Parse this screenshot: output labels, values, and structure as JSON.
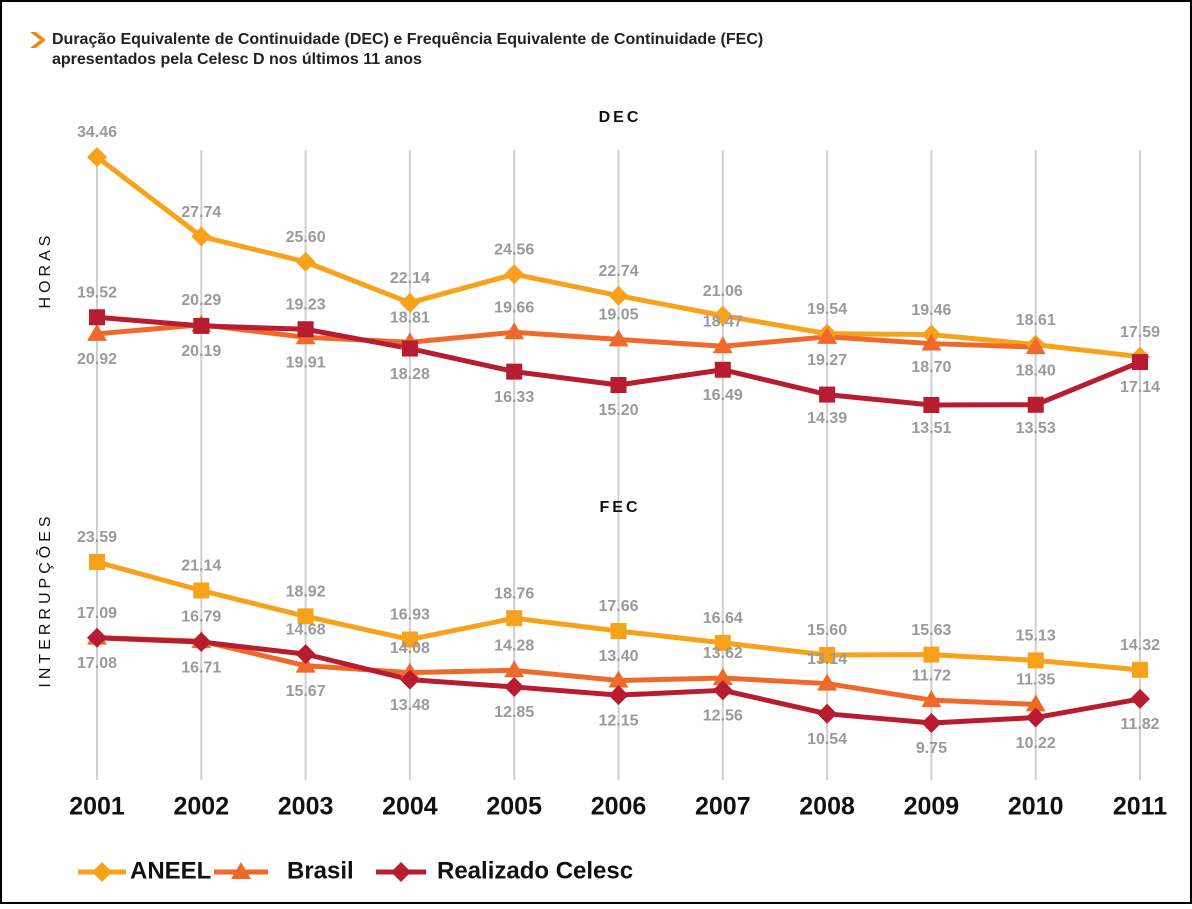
{
  "header": {
    "title": "Duração Equivalente de Continuidade (DEC) e Frequência Equivalente de Continuidade (FEC)",
    "subtitle": "apresentados pela Celesc D nos últimos 11 anos"
  },
  "chart_data": [
    {
      "type": "line",
      "title": "DEC",
      "y_label": "HORAS",
      "categories": [
        "2001",
        "2002",
        "2003",
        "2004",
        "2005",
        "2006",
        "2007",
        "2008",
        "2009",
        "2010",
        "2011"
      ],
      "series": [
        {
          "name": "ANEEL",
          "color": "#f7a21b",
          "values": [
            34.46,
            27.74,
            25.6,
            22.14,
            24.56,
            22.74,
            21.06,
            19.54,
            19.46,
            18.61,
            17.59
          ],
          "value_labels": [
            "34.46",
            "27.74",
            "25.60",
            "22.14",
            "24.56",
            "22.74",
            "21.06",
            "19.54",
            "19.46",
            "18.61",
            "17.59"
          ]
        },
        {
          "name": "Brasil",
          "color": "#ef6a2a",
          "values": [
            19.52,
            20.29,
            19.23,
            18.81,
            19.66,
            19.05,
            18.47,
            19.27,
            18.7,
            18.4,
            null
          ],
          "value_labels": [
            "19.52",
            "20.29",
            "19.23",
            "18.81",
            "19.66",
            "19.05",
            "18.47",
            "19.27",
            "18.70",
            "18.40",
            null
          ]
        },
        {
          "name": "Realizado Celesc",
          "color": "#b81c30",
          "values": [
            20.92,
            20.19,
            19.91,
            18.28,
            16.33,
            15.2,
            16.49,
            14.39,
            13.51,
            13.53,
            17.14
          ],
          "value_labels": [
            "20.92",
            "20.19",
            "19.91",
            "18.28",
            "16.33",
            "15.20",
            "16.49",
            "14.39",
            "13.51",
            "13.53",
            "17.14"
          ]
        }
      ]
    },
    {
      "type": "line",
      "title": "FEC",
      "y_label": "INTERRUPÇÕES",
      "categories": [
        "2001",
        "2002",
        "2003",
        "2004",
        "2005",
        "2006",
        "2007",
        "2008",
        "2009",
        "2010",
        "2011"
      ],
      "series": [
        {
          "name": "ANEEL",
          "color": "#f7a21b",
          "values": [
            23.59,
            21.14,
            18.92,
            16.93,
            18.76,
            17.66,
            16.64,
            15.6,
            15.63,
            15.13,
            14.32
          ],
          "value_labels": [
            "23.59",
            "21.14",
            "18.92",
            "16.93",
            "18.76",
            "17.66",
            "16.64",
            "15.60",
            "15.63",
            "15.13",
            "14.32"
          ]
        },
        {
          "name": "Brasil",
          "color": "#ef6a2a",
          "values": [
            17.09,
            16.79,
            14.68,
            14.08,
            14.28,
            13.4,
            13.62,
            13.14,
            11.72,
            11.35,
            null
          ],
          "value_labels": [
            "17.09",
            "16.79",
            "14.68",
            "14.08",
            "14.28",
            "13.40",
            "13.62",
            "13.14",
            "11.72",
            "11.35",
            null
          ]
        },
        {
          "name": "Realizado Celesc",
          "color": "#b81c30",
          "values": [
            17.08,
            16.71,
            15.67,
            13.48,
            12.85,
            12.15,
            12.56,
            10.54,
            9.75,
            10.22,
            11.82
          ],
          "value_labels": [
            "17.08",
            "16.71",
            "15.67",
            "13.48",
            "12.85",
            "12.15",
            "12.56",
            "10.54",
            "9.75",
            "10.22",
            "11.82"
          ]
        }
      ]
    }
  ]
}
